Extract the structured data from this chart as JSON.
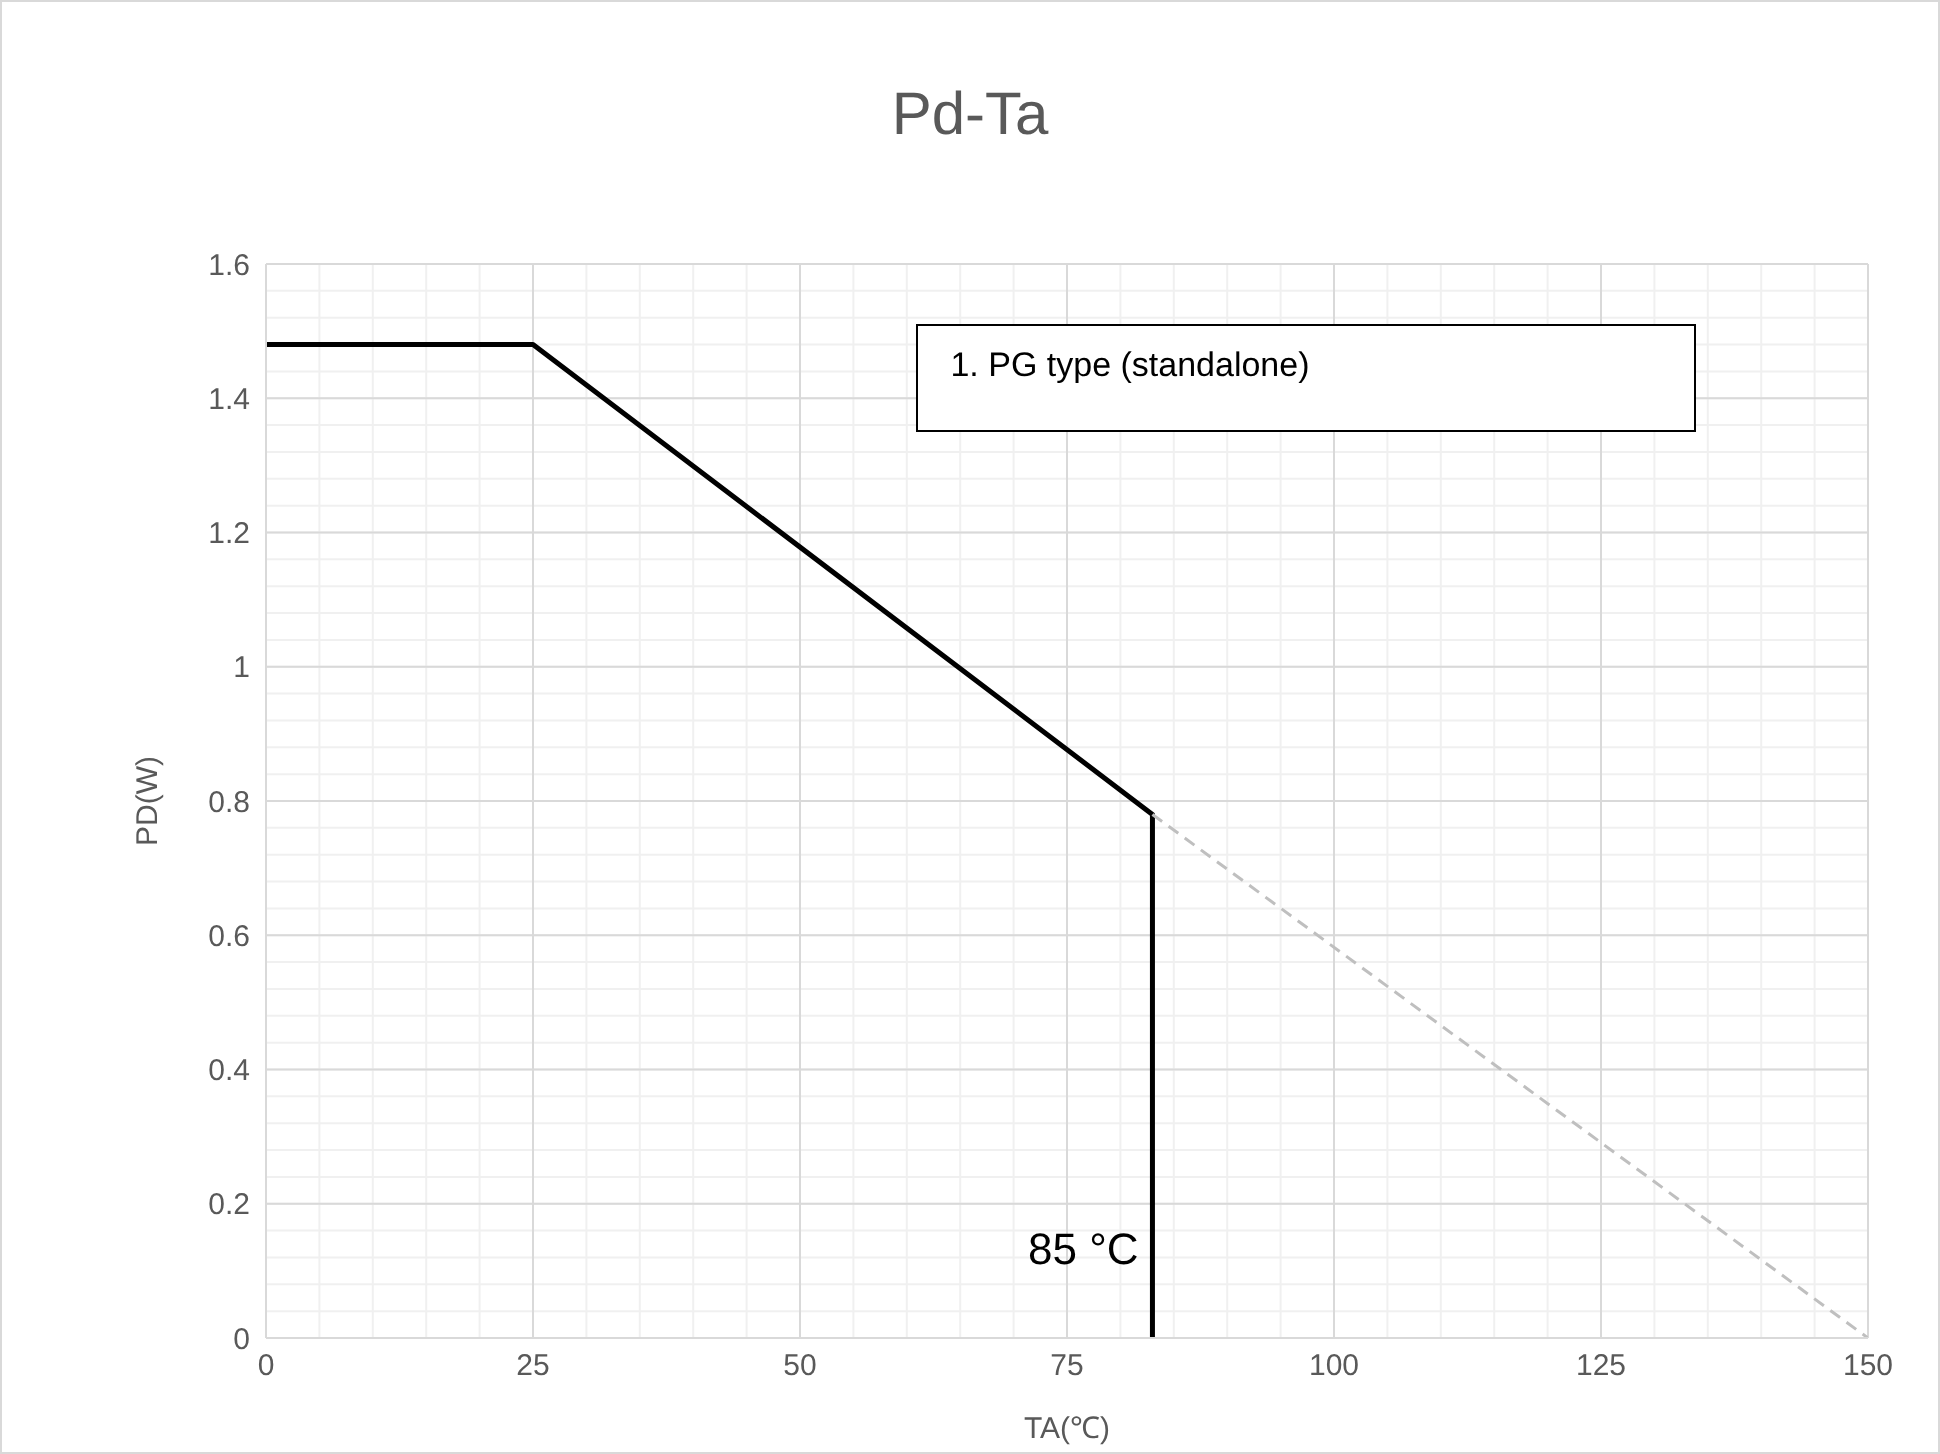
{
  "chart_data": {
    "type": "line",
    "title": "Pd-Ta",
    "xlabel": "TA(℃)",
    "ylabel": "PD(W)",
    "xlim": [
      0,
      150
    ],
    "ylim": [
      0,
      1.6
    ],
    "xticks": [
      0,
      {
        "value": 5,
        "label": null
      },
      {
        "value": 10,
        "label": null
      },
      {
        "value": 15,
        "label": null
      },
      {
        "value": 20,
        "label": null
      },
      25,
      {
        "value": 30,
        "label": null
      },
      {
        "value": 35,
        "label": null
      },
      {
        "value": 40,
        "label": null
      },
      {
        "value": 45,
        "label": null
      },
      50,
      {
        "value": 55,
        "label": null
      },
      {
        "value": 60,
        "label": null
      },
      {
        "value": 65,
        "label": null
      },
      {
        "value": 70,
        "label": null
      },
      75,
      {
        "value": 80,
        "label": null
      },
      {
        "value": 85,
        "label": null
      },
      {
        "value": 90,
        "label": null
      },
      {
        "value": 95,
        "label": null
      },
      100,
      {
        "value": 105,
        "label": null
      },
      {
        "value": 110,
        "label": null
      },
      {
        "value": 115,
        "label": null
      },
      {
        "value": 120,
        "label": null
      },
      125,
      {
        "value": 130,
        "label": null
      },
      {
        "value": 135,
        "label": null
      },
      {
        "value": 140,
        "label": null
      },
      {
        "value": 145,
        "label": null
      },
      150
    ],
    "yticks": [
      0,
      {
        "value": 0.04,
        "label": null
      },
      {
        "value": 0.08,
        "label": null
      },
      {
        "value": 0.12,
        "label": null
      },
      {
        "value": 0.16,
        "label": null
      },
      0.2,
      {
        "value": 0.24,
        "label": null
      },
      {
        "value": 0.28,
        "label": null
      },
      {
        "value": 0.32,
        "label": null
      },
      {
        "value": 0.36,
        "label": null
      },
      0.4,
      {
        "value": 0.44,
        "label": null
      },
      {
        "value": 0.48,
        "label": null
      },
      {
        "value": 0.52,
        "label": null
      },
      {
        "value": 0.56,
        "label": null
      },
      0.6,
      {
        "value": 0.64,
        "label": null
      },
      {
        "value": 0.68,
        "label": null
      },
      {
        "value": 0.72,
        "label": null
      },
      {
        "value": 0.76,
        "label": null
      },
      0.8,
      {
        "value": 0.84,
        "label": null
      },
      {
        "value": 0.88,
        "label": null
      },
      {
        "value": 0.92,
        "label": null
      },
      {
        "value": 0.96,
        "label": null
      },
      1,
      {
        "value": 1.04,
        "label": null
      },
      {
        "value": 1.08,
        "label": null
      },
      {
        "value": 1.12,
        "label": null
      },
      {
        "value": 1.16,
        "label": null
      },
      1.2,
      {
        "value": 1.24,
        "label": null
      },
      {
        "value": 1.28,
        "label": null
      },
      {
        "value": 1.32,
        "label": null
      },
      {
        "value": 1.36,
        "label": null
      },
      1.4,
      {
        "value": 1.44,
        "label": null
      },
      {
        "value": 1.48,
        "label": null
      },
      {
        "value": 1.52,
        "label": null
      },
      {
        "value": 1.56,
        "label": null
      },
      1.6
    ],
    "grid": true,
    "marker": "none",
    "series": [
      {
        "color": "#000000",
        "line_style": "solid",
        "x": [
          0,
          25,
          83,
          83
        ],
        "values": [
          1.48,
          1.48,
          0.78,
          0
        ]
      },
      {
        "color": "#bfbfbf",
        "line_style": "dashed",
        "x": [
          83,
          150
        ],
        "values": [
          0.78,
          0
        ]
      }
    ],
    "annotations": [
      "1. PG type (standalone)",
      {
        "text": "85 °C",
        "x": 83,
        "y": 0.1
      }
    ]
  }
}
